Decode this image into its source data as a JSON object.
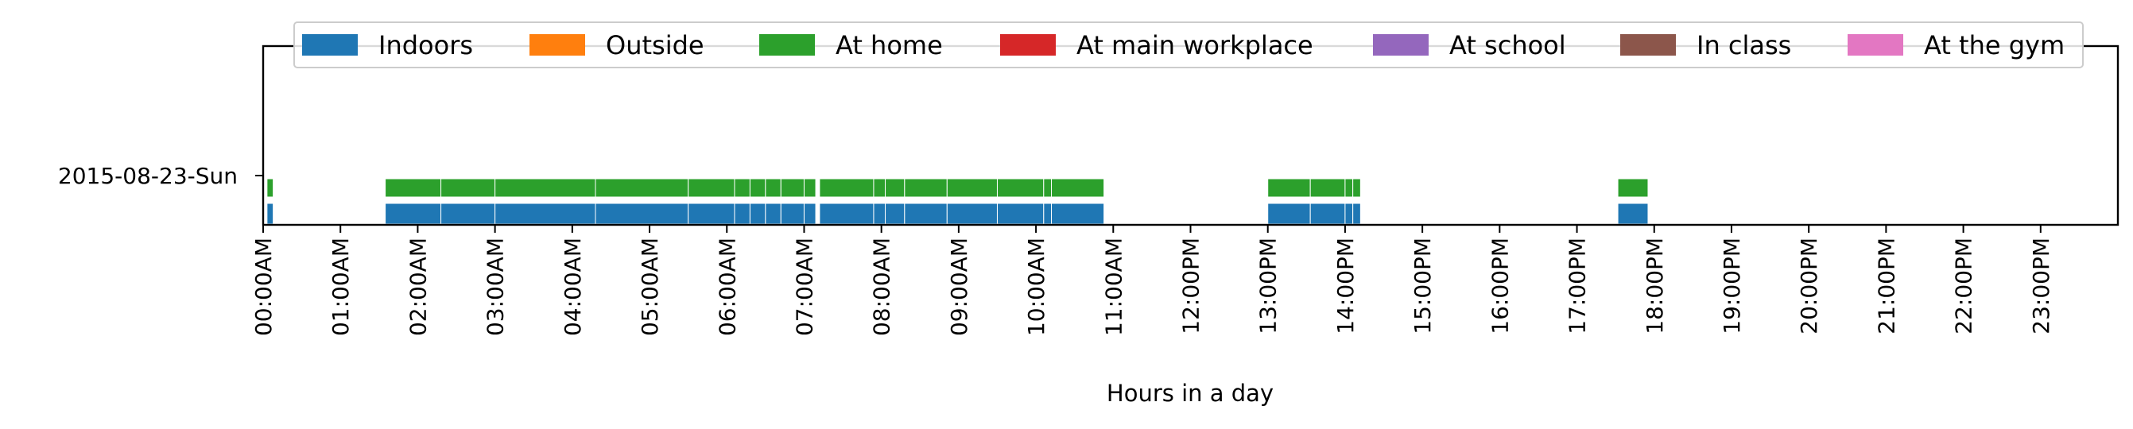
{
  "chart_data": {
    "type": "timeline",
    "xlabel": "Hours in a day",
    "x_unit": "hour of day",
    "xlim": [
      0,
      24
    ],
    "x_ticks": [
      {
        "hour": 0,
        "label": "00:00AM"
      },
      {
        "hour": 1,
        "label": "01:00AM"
      },
      {
        "hour": 2,
        "label": "02:00AM"
      },
      {
        "hour": 3,
        "label": "03:00AM"
      },
      {
        "hour": 4,
        "label": "04:00AM"
      },
      {
        "hour": 5,
        "label": "05:00AM"
      },
      {
        "hour": 6,
        "label": "06:00AM"
      },
      {
        "hour": 7,
        "label": "07:00AM"
      },
      {
        "hour": 8,
        "label": "08:00AM"
      },
      {
        "hour": 9,
        "label": "09:00AM"
      },
      {
        "hour": 10,
        "label": "10:00AM"
      },
      {
        "hour": 11,
        "label": "11:00AM"
      },
      {
        "hour": 12,
        "label": "12:00PM"
      },
      {
        "hour": 13,
        "label": "13:00PM"
      },
      {
        "hour": 14,
        "label": "14:00PM"
      },
      {
        "hour": 15,
        "label": "15:00PM"
      },
      {
        "hour": 16,
        "label": "16:00PM"
      },
      {
        "hour": 17,
        "label": "17:00PM"
      },
      {
        "hour": 18,
        "label": "18:00PM"
      },
      {
        "hour": 19,
        "label": "19:00PM"
      },
      {
        "hour": 20,
        "label": "20:00PM"
      },
      {
        "hour": 21,
        "label": "21:00PM"
      },
      {
        "hour": 22,
        "label": "22:00PM"
      },
      {
        "hour": 23,
        "label": "23:00PM"
      }
    ],
    "days": [
      {
        "label": "2015-08-23-Sun"
      }
    ],
    "legend": {
      "placement": "top",
      "entries": [
        {
          "name": "Indoors",
          "color": "#1f77b4"
        },
        {
          "name": "Outside",
          "color": "#ff7f0e"
        },
        {
          "name": "At home",
          "color": "#2ca02c"
        },
        {
          "name": "At main workplace",
          "color": "#d62728"
        },
        {
          "name": "At school",
          "color": "#9467bd"
        },
        {
          "name": "In class",
          "color": "#8c564b"
        },
        {
          "name": "At the gym",
          "color": "#e377c2"
        }
      ]
    },
    "series": [
      {
        "name": "Indoors",
        "color": "#1f77b4",
        "day": 0,
        "intervals": [
          [
            0.05,
            0.13
          ],
          [
            1.58,
            2.3
          ],
          [
            2.3,
            3.0
          ],
          [
            3.0,
            4.3
          ],
          [
            4.3,
            5.5
          ],
          [
            5.5,
            6.1
          ],
          [
            6.1,
            6.3
          ],
          [
            6.3,
            6.5
          ],
          [
            6.5,
            6.7
          ],
          [
            6.7,
            7.0
          ],
          [
            7.0,
            7.15
          ],
          [
            7.2,
            7.9
          ],
          [
            7.9,
            8.05
          ],
          [
            8.05,
            8.3
          ],
          [
            8.3,
            8.85
          ],
          [
            8.85,
            9.5
          ],
          [
            9.5,
            10.1
          ],
          [
            10.1,
            10.2
          ],
          [
            10.2,
            10.88
          ],
          [
            13.0,
            13.55
          ],
          [
            13.55,
            14.0
          ],
          [
            14.0,
            14.1
          ],
          [
            14.1,
            14.2
          ],
          [
            17.53,
            17.92
          ]
        ]
      },
      {
        "name": "At home",
        "color": "#2ca02c",
        "day": 0,
        "intervals": [
          [
            0.05,
            0.13
          ],
          [
            1.58,
            2.3
          ],
          [
            2.3,
            3.0
          ],
          [
            3.0,
            4.3
          ],
          [
            4.3,
            5.5
          ],
          [
            5.5,
            6.1
          ],
          [
            6.1,
            6.3
          ],
          [
            6.3,
            6.5
          ],
          [
            6.5,
            6.7
          ],
          [
            6.7,
            7.0
          ],
          [
            7.0,
            7.15
          ],
          [
            7.2,
            7.9
          ],
          [
            7.9,
            8.05
          ],
          [
            8.05,
            8.3
          ],
          [
            8.3,
            8.85
          ],
          [
            8.85,
            9.5
          ],
          [
            9.5,
            10.1
          ],
          [
            10.1,
            10.2
          ],
          [
            10.2,
            10.88
          ],
          [
            13.0,
            13.55
          ],
          [
            13.55,
            14.0
          ],
          [
            14.0,
            14.1
          ],
          [
            14.1,
            14.2
          ],
          [
            17.53,
            17.92
          ]
        ]
      }
    ]
  }
}
